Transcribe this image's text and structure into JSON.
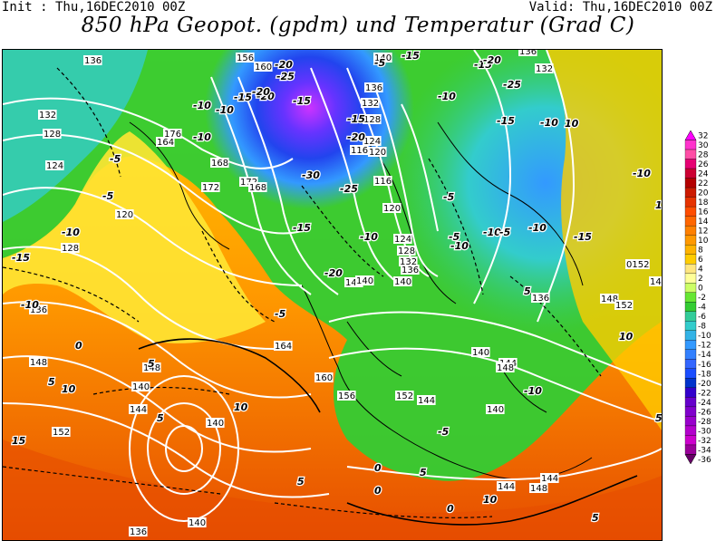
{
  "header": {
    "init_text": "Init : Thu,16DEC2010 00Z",
    "valid_text": "Valid: Thu,16DEC2010 00Z",
    "title": "850 hPa Geopot. (gpdm) und Temperatur (Grad C)"
  },
  "colorbar": {
    "labels": [
      "32",
      "30",
      "28",
      "26",
      "24",
      "22",
      "20",
      "18",
      "16",
      "14",
      "12",
      "10",
      "8",
      "6",
      "4",
      "2",
      "0",
      "-2",
      "-4",
      "-6",
      "-8",
      "-10",
      "-12",
      "-14",
      "-16",
      "-18",
      "-20",
      "-22",
      "-24",
      "-26",
      "-28",
      "-30",
      "-32",
      "-34",
      "-36"
    ],
    "colors": [
      "#ff00ff",
      "#ff33cc",
      "#ff4da6",
      "#e60073",
      "#cc0033",
      "#b30000",
      "#cc1a00",
      "#e63300",
      "#ff4d00",
      "#ff6600",
      "#ff8000",
      "#ff9900",
      "#ffb300",
      "#ffcc00",
      "#ffe680",
      "#ffff99",
      "#ccff66",
      "#66e633",
      "#33cc33",
      "#33cc99",
      "#33cccc",
      "#33b3e6",
      "#3399ff",
      "#3380ff",
      "#3366ff",
      "#1a4dff",
      "#0033cc",
      "#3300cc",
      "#6600cc",
      "#8000cc",
      "#9900cc",
      "#b300cc",
      "#cc00cc",
      "#990099",
      "#660066"
    ]
  },
  "map": {
    "geopotential_labels": [
      "156",
      "160",
      "136",
      "132",
      "128",
      "124",
      "128",
      "120",
      "136",
      "164",
      "168",
      "172",
      "168",
      "172",
      "176",
      "140",
      "136",
      "132",
      "128",
      "124",
      "120",
      "116",
      "116",
      "120",
      "124",
      "128",
      "132",
      "136",
      "140",
      "144",
      "148",
      "152",
      "140",
      "136",
      "132",
      "136",
      "140",
      "144",
      "148",
      "140",
      "144",
      "148",
      "140",
      "164",
      "160",
      "156",
      "152",
      "144",
      "140",
      "136",
      "140",
      "144",
      "148",
      "144",
      "148",
      "152",
      "0152",
      "140"
    ],
    "temperature_labels": [
      "-20",
      "-25",
      "-20",
      "-15",
      "-10",
      "-15",
      "-10",
      "-20",
      "-15",
      "-5",
      "-10",
      "-15",
      "-20",
      "-25",
      "-15",
      "-10",
      "-5",
      "-10",
      "-15",
      "-20",
      "-25",
      "-30",
      "-20",
      "-15",
      "-10",
      "-5",
      "0",
      "5",
      "-5",
      "-10",
      "-15",
      "-10",
      "-5",
      "-10",
      "-10",
      "-5",
      "-10",
      "-15",
      "-10",
      "-5",
      "5",
      "10",
      "15",
      "10",
      "5",
      "0",
      "-5",
      "-10",
      "5",
      "0",
      "5",
      "10",
      "15",
      "10",
      "5",
      "0",
      "5",
      "10",
      "5"
    ]
  }
}
